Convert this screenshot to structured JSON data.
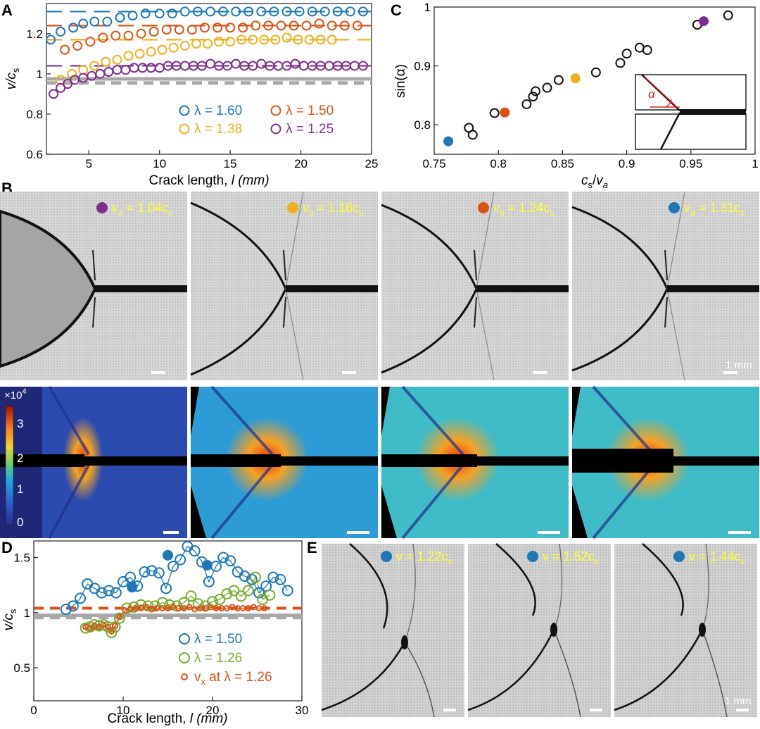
{
  "colors": {
    "blue": "#1f77b4",
    "orange": "#d95319",
    "gold": "#edb120",
    "purple": "#7e2f8e",
    "green": "#77ac30",
    "gray": "#a8a8a8",
    "label_yellow": "#ffff33"
  },
  "panels": {
    "A": {
      "letter": "A"
    },
    "B": {
      "letter": "B"
    },
    "C": {
      "letter": "C"
    },
    "D": {
      "letter": "D"
    },
    "E": {
      "letter": "E"
    }
  },
  "chart_data": [
    {
      "panel": "A",
      "type": "scatter",
      "xlabel_prefix": "Crack length, ",
      "xlabel_var": "l",
      "xlabel_unit": " (mm)",
      "ylabel_var": "v/c",
      "ylabel_sub": "s",
      "xlim": [
        2,
        25
      ],
      "ylim": [
        0.6,
        1.35
      ],
      "xticks": [
        5,
        10,
        15,
        20,
        25
      ],
      "yticks": [
        0.6,
        0.8,
        1,
        1.2
      ],
      "reference_lines": [
        {
          "y": 0.975,
          "style": "solid",
          "color": "gray"
        },
        {
          "y": 0.955,
          "style": "dashed",
          "color": "gray"
        }
      ],
      "series": [
        {
          "name": "λ = 1.60",
          "color": "blue",
          "asymptote": 1.31,
          "x": [
            2.3,
            3.0,
            3.9,
            4.6,
            5.4,
            6.3,
            7.2,
            8.1,
            9.0,
            10.0,
            10.9,
            11.8,
            12.7,
            13.6,
            14.5,
            15.4,
            16.3,
            17.2,
            18.1,
            19.0,
            19.9,
            20.8,
            21.7,
            22.6,
            23.5,
            24.4
          ],
          "y": [
            1.17,
            1.21,
            1.23,
            1.25,
            1.26,
            1.26,
            1.28,
            1.29,
            1.3,
            1.3,
            1.3,
            1.31,
            1.31,
            1.31,
            1.31,
            1.31,
            1.31,
            1.31,
            1.31,
            1.31,
            1.31,
            1.31,
            1.31,
            1.31,
            1.31,
            1.31
          ]
        },
        {
          "name": "λ = 1.50",
          "color": "orange",
          "asymptote": 1.24,
          "x": [
            3.3,
            4.2,
            5.1,
            6.0,
            6.9,
            7.8,
            8.7,
            9.6,
            10.5,
            11.4,
            12.3,
            13.2,
            14.1,
            15.0,
            15.9,
            16.8,
            17.7,
            18.6,
            19.5,
            20.4,
            21.3,
            22.2,
            23.1,
            24.0
          ],
          "y": [
            1.12,
            1.14,
            1.16,
            1.18,
            1.19,
            1.19,
            1.2,
            1.21,
            1.22,
            1.22,
            1.22,
            1.23,
            1.23,
            1.23,
            1.23,
            1.24,
            1.24,
            1.24,
            1.24,
            1.24,
            1.25,
            1.24,
            1.24,
            1.24
          ]
        },
        {
          "name": "λ = 1.38",
          "color": "gold",
          "asymptote": 1.17,
          "x": [
            3.0,
            3.8,
            4.6,
            5.4,
            6.2,
            7.0,
            7.8,
            8.6,
            9.4,
            10.2,
            11.0,
            11.8,
            12.6,
            13.4,
            14.2,
            15.0,
            15.8,
            16.6,
            17.4,
            18.2,
            19.0,
            19.8,
            20.6,
            21.4,
            22.2
          ],
          "y": [
            0.97,
            1.0,
            1.02,
            1.04,
            1.06,
            1.07,
            1.09,
            1.1,
            1.11,
            1.12,
            1.13,
            1.14,
            1.15,
            1.15,
            1.16,
            1.16,
            1.17,
            1.17,
            1.17,
            1.17,
            1.18,
            1.17,
            1.17,
            1.17,
            1.17
          ]
        },
        {
          "name": "λ = 1.25",
          "color": "purple",
          "asymptote": 1.04,
          "x": [
            2.5,
            3.0,
            3.5,
            4.0,
            4.6,
            5.2,
            5.8,
            6.4,
            7.0,
            7.6,
            8.2,
            8.8,
            9.4,
            10.0,
            10.6,
            11.2,
            11.8,
            12.4,
            13.0,
            13.6,
            14.2,
            14.8,
            15.4,
            16.0,
            16.6,
            17.2,
            17.8,
            18.4,
            19.0,
            19.6,
            20.2,
            20.8,
            21.4,
            22.0,
            22.6,
            23.2,
            23.8,
            24.4
          ],
          "y": [
            0.9,
            0.93,
            0.95,
            0.97,
            0.98,
            0.99,
            1.0,
            1.01,
            1.02,
            1.02,
            1.03,
            1.03,
            1.03,
            1.03,
            1.04,
            1.04,
            1.04,
            1.04,
            1.04,
            1.05,
            1.04,
            1.04,
            1.05,
            1.04,
            1.04,
            1.05,
            1.04,
            1.04,
            1.04,
            1.05,
            1.04,
            1.04,
            1.04,
            1.04,
            1.04,
            1.04,
            1.04,
            1.04
          ]
        }
      ]
    },
    {
      "panel": "C",
      "type": "scatter",
      "xlabel_num": "c",
      "xlabel_num_sub": "s",
      "xlabel_den": "v",
      "xlabel_den_sub": "a",
      "ylabel": "sin(α)",
      "xlim": [
        0.75,
        1
      ],
      "ylim": [
        0.75,
        1
      ],
      "xticks": [
        0.75,
        0.8,
        0.85,
        0.9,
        0.95,
        1
      ],
      "xtick_labels": [
        "0.75",
        "0.8",
        "0.85",
        "0.9",
        "0.95",
        "1"
      ],
      "yticks": [
        0.8,
        0.9,
        1
      ],
      "ytick_labels": [
        "0.8",
        "0.9",
        "1"
      ],
      "open_points": {
        "x": [
          0.777,
          0.78,
          0.797,
          0.822,
          0.827,
          0.829,
          0.838,
          0.847,
          0.876,
          0.895,
          0.9,
          0.91,
          0.916,
          0.955,
          0.979
        ],
        "y": [
          0.795,
          0.783,
          0.82,
          0.835,
          0.848,
          0.857,
          0.863,
          0.876,
          0.889,
          0.905,
          0.921,
          0.931,
          0.927,
          0.97,
          0.986
        ]
      },
      "filled_points": [
        {
          "x": 0.761,
          "y": 0.772,
          "color": "blue"
        },
        {
          "x": 0.805,
          "y": 0.821,
          "color": "orange"
        },
        {
          "x": 0.86,
          "y": 0.879,
          "color": "gold"
        },
        {
          "x": 0.96,
          "y": 0.976,
          "color": "purple"
        }
      ],
      "inset_label": "α"
    },
    {
      "panel": "D",
      "type": "scatter",
      "xlabel_prefix": "Crack length, ",
      "xlabel_var": "l",
      "xlabel_unit": " (mm)",
      "ylabel_var": "v/c",
      "ylabel_sub": "s",
      "xlim": [
        0,
        30
      ],
      "ylim": [
        0.2,
        1.65
      ],
      "xticks": [
        0,
        10,
        20,
        30
      ],
      "yticks": [
        0.5,
        1,
        1.5
      ],
      "ytick_labels": [
        "0.5",
        "1",
        "1.5"
      ],
      "reference_lines": [
        {
          "y": 1.04,
          "style": "dashed",
          "color": "orange"
        },
        {
          "y": 0.975,
          "style": "solid",
          "color": "gray"
        },
        {
          "y": 0.955,
          "style": "dashed",
          "color": "gray"
        }
      ],
      "series": [
        {
          "name": "λ = 1.50",
          "color": "blue",
          "x": [
            3.6,
            4.4,
            5.2,
            6.0,
            6.8,
            7.6,
            8.4,
            9.2,
            10.0,
            10.8,
            11.6,
            12.4,
            13.2,
            14.0,
            14.8,
            15.6,
            16.4,
            17.2,
            18.0,
            18.8,
            19.6,
            20.4,
            21.2,
            22.0,
            22.8,
            23.6,
            24.4,
            25.2,
            26.0,
            26.8,
            27.6,
            28.4
          ],
          "y": [
            1.03,
            1.06,
            1.13,
            1.26,
            1.22,
            1.18,
            1.2,
            1.18,
            1.28,
            1.32,
            1.24,
            1.37,
            1.38,
            1.36,
            1.22,
            1.42,
            1.48,
            1.6,
            1.56,
            1.46,
            1.28,
            1.42,
            1.5,
            1.47,
            1.37,
            1.33,
            1.3,
            1.18,
            1.24,
            1.32,
            1.3,
            1.2
          ]
        },
        {
          "name": "λ = 1.26",
          "color": "green",
          "x": [
            5.8,
            6.3,
            6.8,
            7.3,
            7.8,
            8.3,
            8.7,
            9.1,
            9.6,
            10.4,
            11.2,
            12.0,
            12.8,
            13.6,
            14.4,
            15.2,
            16.0,
            16.8,
            17.6,
            18.4,
            19.2,
            20.0,
            20.8,
            21.6,
            22.4,
            23.2,
            24.0,
            24.8,
            25.6,
            26.4
          ],
          "y": [
            0.86,
            0.87,
            0.89,
            0.88,
            0.89,
            0.87,
            0.82,
            0.87,
            0.95,
            1.04,
            1.05,
            1.07,
            1.06,
            1.06,
            1.09,
            1.07,
            1.06,
            1.09,
            1.15,
            1.08,
            1.06,
            1.1,
            1.12,
            1.17,
            1.2,
            1.15,
            1.2,
            1.32,
            1.12,
            1.16
          ]
        },
        {
          "name": "v",
          "name_sub": "x",
          "name_suffix": " at λ = 1.26",
          "color": "orange",
          "small": true,
          "x": [
            5.8,
            6.3,
            6.8,
            7.3,
            7.8,
            8.3,
            8.7,
            9.1,
            9.6,
            10.2,
            10.8,
            11.4,
            12.0,
            12.6,
            13.2,
            13.8,
            14.4,
            15.0,
            15.6,
            16.2,
            16.8,
            17.4,
            18.0,
            18.6,
            19.2,
            19.8,
            20.4,
            21.0,
            21.6,
            22.2,
            22.8,
            23.4,
            24.0,
            24.6,
            25.2,
            25.8
          ],
          "y": [
            0.87,
            0.86,
            0.88,
            0.87,
            0.89,
            0.87,
            0.83,
            0.88,
            0.96,
            1.02,
            1.03,
            1.04,
            1.04,
            1.05,
            1.03,
            1.04,
            1.04,
            1.04,
            1.05,
            1.04,
            1.04,
            1.05,
            1.03,
            1.04,
            1.04,
            1.05,
            1.04,
            1.04,
            1.04,
            1.05,
            1.04,
            1.04,
            1.04,
            1.05,
            1.04,
            1.04
          ]
        }
      ],
      "filled_points": [
        {
          "x": 11.0,
          "y": 1.23,
          "color": "blue"
        },
        {
          "x": 15.0,
          "y": 1.52,
          "color": "blue"
        },
        {
          "x": 19.4,
          "y": 1.43,
          "color": "blue"
        }
      ]
    }
  ],
  "panel_B": {
    "images": [
      {
        "var": "v",
        "var_sub": "a",
        "eq": " = 1.04c",
        "eq_sub": "s",
        "dot_color": "purple"
      },
      {
        "var": "v",
        "var_sub": "a",
        "eq": " = 1.16c",
        "eq_sub": "s",
        "dot_color": "gold"
      },
      {
        "var": "v",
        "var_sub": "a",
        "eq": " = 1.24c",
        "eq_sub": "s",
        "dot_color": "orange"
      },
      {
        "var": "v",
        "var_sub": "a",
        "eq": " = 1.31c",
        "eq_sub": "s",
        "dot_color": "blue"
      }
    ],
    "scale_bar_label": "1 mm",
    "colorbar": {
      "multiplier": "×10",
      "exponent": "4",
      "ticks": [
        "3",
        "2",
        "1",
        "0"
      ]
    }
  },
  "panel_E": {
    "images": [
      {
        "text": "v = 1.22c",
        "sub": "s",
        "dot_color": "blue"
      },
      {
        "text": "v = 1.52c",
        "sub": "s",
        "dot_color": "blue"
      },
      {
        "text": "v = 1.44c",
        "sub": "s",
        "dot_color": "blue"
      }
    ],
    "scale_bar_label": "1 mm"
  }
}
